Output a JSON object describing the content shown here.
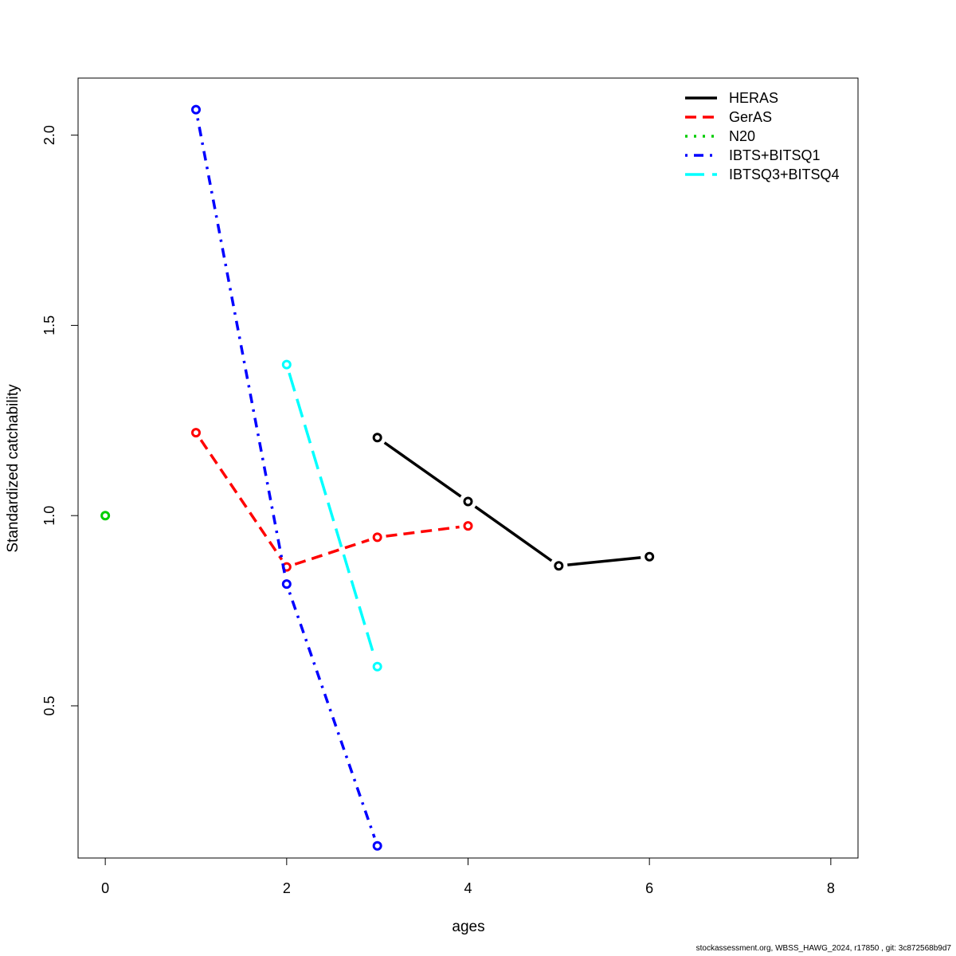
{
  "chart_data": {
    "type": "line",
    "xlabel": "ages",
    "ylabel": "Standardized catchability",
    "xlim": [
      -0.3,
      8.3
    ],
    "ylim": [
      0.1,
      2.15
    ],
    "x_ticks": [
      0,
      2,
      4,
      6,
      8
    ],
    "y_ticks": [
      0.5,
      1.0,
      1.5,
      2.0
    ],
    "x_tick_labels": [
      "0",
      "2",
      "4",
      "6",
      "8"
    ],
    "y_tick_labels": [
      "0.5",
      "1.0",
      "1.5",
      "2.0"
    ],
    "legend_position": "top-right",
    "series": [
      {
        "name": "HERAS",
        "color": "#000000",
        "dash": "solid",
        "x": [
          3,
          4,
          5,
          6
        ],
        "y": [
          1.205,
          1.037,
          0.868,
          0.892
        ]
      },
      {
        "name": "GerAS",
        "color": "#ff0000",
        "dash": "dashed",
        "x": [
          1,
          2,
          3,
          4
        ],
        "y": [
          1.218,
          0.865,
          0.943,
          0.973
        ]
      },
      {
        "name": "N20",
        "color": "#00cd00",
        "dash": "dotted",
        "x": [
          0
        ],
        "y": [
          1.0
        ]
      },
      {
        "name": "IBTS+BITSQ1",
        "color": "#0000ff",
        "dash": "dotdash",
        "x": [
          1,
          2,
          3
        ],
        "y": [
          2.067,
          0.82,
          0.132
        ]
      },
      {
        "name": "IBTSQ3+BITSQ4",
        "color": "#00ffff",
        "dash": "longdash",
        "x": [
          2,
          3
        ],
        "y": [
          1.397,
          0.603
        ]
      }
    ]
  },
  "footer": "stockassessment.org, WBSS_HAWG_2024, r17850 , git: 3c872568b9d7"
}
